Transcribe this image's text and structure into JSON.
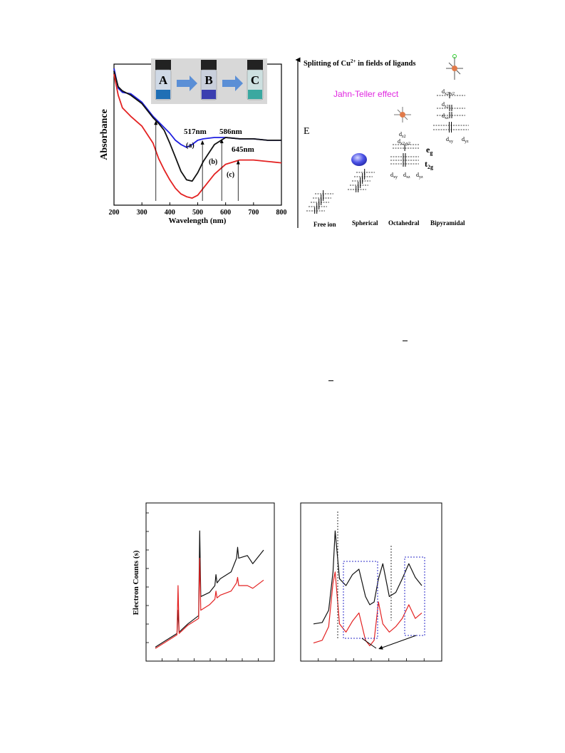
{
  "figures": {
    "uv_vis": {
      "photo_labels": [
        "A",
        "B",
        "C"
      ],
      "wavelength_markers": [
        "517nm",
        "586nm",
        "645nm"
      ],
      "curve_labels": [
        "(a)",
        "(b)",
        "(c)"
      ]
    },
    "splitting": {
      "title_prefix": "Splitting of Cu",
      "title_superscript": "2+",
      "title_suffix": " in fields of ligands",
      "energy_label": "E",
      "jahn_teller": "Jahn-Teller effect",
      "eg": "e",
      "eg_sub": "g",
      "t2g": "t",
      "t2g_sub": "2g",
      "orbital_labels": {
        "oct_dz2": "d",
        "oct_dz2_sub": "z2",
        "oct_dx2y2": "d",
        "oct_dx2y2_sub": "x2-y2",
        "oct_dxy": "d",
        "oct_dxy_sub": "xy",
        "oct_dxz": "d",
        "oct_dxz_sub": "xz",
        "oct_dyz": "d",
        "oct_dyz_sub": "yz",
        "bip_dx2y2": "d",
        "bip_dx2y2_sub": "x2-y2",
        "bip_dz2": "d",
        "bip_dz2_sub": "z2",
        "bip_dxz": "d",
        "bip_dxz_sub": "xz",
        "bip_dxy": "d",
        "bip_dxy_sub": "xy",
        "bip_dyz": "d",
        "bip_dyz_sub": "yz"
      },
      "column_labels": [
        "Free ion",
        "Spherical",
        "Octahedral",
        "Bipyramidal"
      ]
    },
    "eels": {
      "ylabel": "Electron Counts (s)"
    }
  },
  "colors": {
    "blue": "#1f1fe0",
    "black": "#111111",
    "red": "#e32222",
    "magenta": "#e026e0",
    "arrow": "#5b8fd6",
    "dash_box": "#2b2bc8"
  },
  "chart_data": [
    {
      "type": "line",
      "title": "",
      "xlabel": "Wavelength (nm)",
      "ylabel": "Absorbance",
      "xlim": [
        200,
        800
      ],
      "xticks": [
        200,
        300,
        400,
        500,
        600,
        700,
        800
      ],
      "ylim": [
        0,
        1
      ],
      "grid": false,
      "series": [
        {
          "name": "(a)",
          "color": "#1f1fe0",
          "x": [
            200,
            215,
            230,
            260,
            300,
            340,
            360,
            380,
            400,
            420,
            440,
            460,
            480,
            500,
            520,
            560,
            600,
            650,
            700,
            750,
            800
          ],
          "y": [
            0.97,
            0.83,
            0.8,
            0.79,
            0.73,
            0.63,
            0.59,
            0.55,
            0.51,
            0.46,
            0.43,
            0.41,
            0.43,
            0.46,
            0.47,
            0.48,
            0.48,
            0.47,
            0.47,
            0.46,
            0.46
          ]
        },
        {
          "name": "(b)",
          "color": "#111111",
          "x": [
            200,
            215,
            230,
            260,
            300,
            340,
            360,
            380,
            400,
            420,
            440,
            460,
            480,
            500,
            520,
            560,
            600,
            650,
            700,
            750,
            800
          ],
          "y": [
            0.95,
            0.84,
            0.81,
            0.78,
            0.72,
            0.62,
            0.58,
            0.53,
            0.44,
            0.34,
            0.24,
            0.18,
            0.17,
            0.23,
            0.31,
            0.43,
            0.48,
            0.47,
            0.47,
            0.46,
            0.46
          ]
        },
        {
          "name": "(c)",
          "color": "#e32222",
          "x": [
            200,
            215,
            230,
            260,
            300,
            340,
            360,
            380,
            400,
            420,
            440,
            460,
            480,
            500,
            520,
            560,
            600,
            650,
            700,
            750,
            800
          ],
          "y": [
            0.93,
            0.78,
            0.69,
            0.63,
            0.56,
            0.44,
            0.33,
            0.25,
            0.18,
            0.12,
            0.08,
            0.06,
            0.05,
            0.07,
            0.12,
            0.22,
            0.29,
            0.32,
            0.32,
            0.31,
            0.3
          ]
        }
      ],
      "annotations": [
        {
          "label": "",
          "x": 350,
          "y": 0.6
        },
        {
          "label": "517nm",
          "x": 517,
          "y": 0.46
        },
        {
          "label": "586nm",
          "x": 586,
          "y": 0.47
        },
        {
          "label": "645nm",
          "x": 645,
          "y": 0.32
        }
      ]
    },
    {
      "type": "line",
      "title": "",
      "xlabel": "",
      "ylabel": "Electron Counts (s)",
      "series": [
        {
          "name": "",
          "color": "#111111",
          "x": [
            0,
            0.1,
            0.2,
            0.21,
            0.22,
            0.3,
            0.4,
            0.41,
            0.42,
            0.5,
            0.55,
            0.56,
            0.57,
            0.6,
            0.7,
            0.75,
            0.76,
            0.77,
            0.85,
            0.9,
            1.0
          ],
          "y": [
            0.05,
            0.1,
            0.15,
            0.32,
            0.16,
            0.22,
            0.28,
            0.9,
            0.42,
            0.45,
            0.5,
            0.58,
            0.52,
            0.55,
            0.6,
            0.7,
            0.78,
            0.7,
            0.72,
            0.66,
            0.76
          ]
        },
        {
          "name": "",
          "color": "#e32222",
          "x": [
            0,
            0.1,
            0.2,
            0.21,
            0.22,
            0.3,
            0.4,
            0.41,
            0.42,
            0.5,
            0.55,
            0.56,
            0.57,
            0.6,
            0.7,
            0.75,
            0.76,
            0.77,
            0.85,
            0.9,
            1.0
          ],
          "y": [
            0.04,
            0.09,
            0.14,
            0.5,
            0.15,
            0.21,
            0.26,
            0.7,
            0.32,
            0.36,
            0.4,
            0.46,
            0.41,
            0.43,
            0.46,
            0.52,
            0.56,
            0.5,
            0.5,
            0.48,
            0.54
          ]
        }
      ]
    },
    {
      "type": "line",
      "title": "",
      "xlabel": "",
      "ylabel": "",
      "series": [
        {
          "name": "",
          "color": "#111111",
          "x": [
            0,
            0.08,
            0.14,
            0.18,
            0.2,
            0.24,
            0.3,
            0.36,
            0.42,
            0.48,
            0.52,
            0.56,
            0.6,
            0.64,
            0.7,
            0.76,
            0.82,
            0.88,
            0.94,
            1.0
          ],
          "y": [
            0.22,
            0.23,
            0.32,
            0.6,
            0.9,
            0.55,
            0.5,
            0.58,
            0.62,
            0.42,
            0.36,
            0.38,
            0.55,
            0.66,
            0.42,
            0.45,
            0.55,
            0.66,
            0.56,
            0.5
          ]
        },
        {
          "name": "",
          "color": "#e32222",
          "x": [
            0,
            0.08,
            0.14,
            0.18,
            0.2,
            0.24,
            0.3,
            0.36,
            0.42,
            0.48,
            0.52,
            0.56,
            0.6,
            0.64,
            0.7,
            0.76,
            0.82,
            0.88,
            0.94,
            1.0
          ],
          "y": [
            0.08,
            0.1,
            0.2,
            0.52,
            0.6,
            0.22,
            0.16,
            0.24,
            0.3,
            0.1,
            0.06,
            0.1,
            0.38,
            0.22,
            0.16,
            0.2,
            0.26,
            0.36,
            0.26,
            0.3
          ]
        }
      ]
    }
  ]
}
